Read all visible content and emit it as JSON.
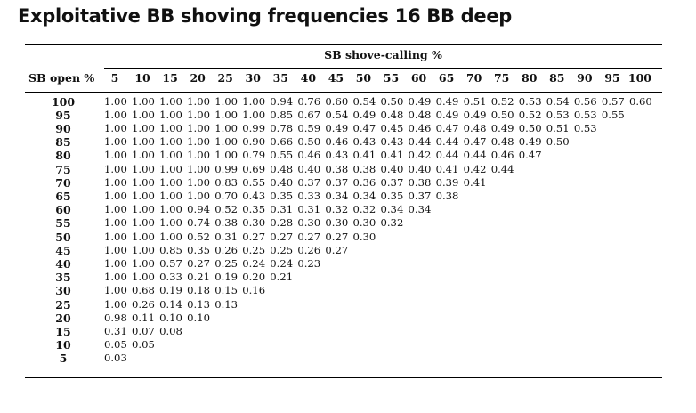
{
  "title": "Exploitative BB shoving frequencies 16 BB deep",
  "table": {
    "group_header": "SB shove-calling %",
    "row_header": "SB open %",
    "columns": [
      "5",
      "10",
      "15",
      "20",
      "25",
      "30",
      "35",
      "40",
      "45",
      "50",
      "55",
      "60",
      "65",
      "70",
      "75",
      "80",
      "85",
      "90",
      "95",
      "100"
    ],
    "rows": [
      {
        "label": "100",
        "values": [
          "1.00",
          "1.00",
          "1.00",
          "1.00",
          "1.00",
          "1.00",
          "0.94",
          "0.76",
          "0.60",
          "0.54",
          "0.50",
          "0.49",
          "0.49",
          "0.51",
          "0.52",
          "0.53",
          "0.54",
          "0.56",
          "0.57",
          "0.60"
        ]
      },
      {
        "label": "95",
        "values": [
          "1.00",
          "1.00",
          "1.00",
          "1.00",
          "1.00",
          "1.00",
          "0.85",
          "0.67",
          "0.54",
          "0.49",
          "0.48",
          "0.48",
          "0.49",
          "0.49",
          "0.50",
          "0.52",
          "0.53",
          "0.53",
          "0.55"
        ]
      },
      {
        "label": "90",
        "values": [
          "1.00",
          "1.00",
          "1.00",
          "1.00",
          "1.00",
          "0.99",
          "0.78",
          "0.59",
          "0.49",
          "0.47",
          "0.45",
          "0.46",
          "0.47",
          "0.48",
          "0.49",
          "0.50",
          "0.51",
          "0.53"
        ]
      },
      {
        "label": "85",
        "values": [
          "1.00",
          "1.00",
          "1.00",
          "1.00",
          "1.00",
          "0.90",
          "0.66",
          "0.50",
          "0.46",
          "0.43",
          "0.43",
          "0.44",
          "0.44",
          "0.47",
          "0.48",
          "0.49",
          "0.50"
        ]
      },
      {
        "label": "80",
        "values": [
          "1.00",
          "1.00",
          "1.00",
          "1.00",
          "1.00",
          "0.79",
          "0.55",
          "0.46",
          "0.43",
          "0.41",
          "0.41",
          "0.42",
          "0.44",
          "0.44",
          "0.46",
          "0.47"
        ]
      },
      {
        "label": "75",
        "values": [
          "1.00",
          "1.00",
          "1.00",
          "1.00",
          "0.99",
          "0.69",
          "0.48",
          "0.40",
          "0.38",
          "0.38",
          "0.40",
          "0.40",
          "0.41",
          "0.42",
          "0.44"
        ]
      },
      {
        "label": "70",
        "values": [
          "1.00",
          "1.00",
          "1.00",
          "1.00",
          "0.83",
          "0.55",
          "0.40",
          "0.37",
          "0.37",
          "0.36",
          "0.37",
          "0.38",
          "0.39",
          "0.41"
        ]
      },
      {
        "label": "65",
        "values": [
          "1.00",
          "1.00",
          "1.00",
          "1.00",
          "0.70",
          "0.43",
          "0.35",
          "0.33",
          "0.34",
          "0.34",
          "0.35",
          "0.37",
          "0.38"
        ]
      },
      {
        "label": "60",
        "values": [
          "1.00",
          "1.00",
          "1.00",
          "0.94",
          "0.52",
          "0.35",
          "0.31",
          "0.31",
          "0.32",
          "0.32",
          "0.34",
          "0.34"
        ]
      },
      {
        "label": "55",
        "values": [
          "1.00",
          "1.00",
          "1.00",
          "0.74",
          "0.38",
          "0.30",
          "0.28",
          "0.30",
          "0.30",
          "0.30",
          "0.32"
        ]
      },
      {
        "label": "50",
        "values": [
          "1.00",
          "1.00",
          "1.00",
          "0.52",
          "0.31",
          "0.27",
          "0.27",
          "0.27",
          "0.27",
          "0.30"
        ]
      },
      {
        "label": "45",
        "values": [
          "1.00",
          "1.00",
          "0.85",
          "0.35",
          "0.26",
          "0.25",
          "0.25",
          "0.26",
          "0.27"
        ]
      },
      {
        "label": "40",
        "values": [
          "1.00",
          "1.00",
          "0.57",
          "0.27",
          "0.25",
          "0.24",
          "0.24",
          "0.23"
        ]
      },
      {
        "label": "35",
        "values": [
          "1.00",
          "1.00",
          "0.33",
          "0.21",
          "0.19",
          "0.20",
          "0.21"
        ]
      },
      {
        "label": "30",
        "values": [
          "1.00",
          "0.68",
          "0.19",
          "0.18",
          "0.15",
          "0.16"
        ]
      },
      {
        "label": "25",
        "values": [
          "1.00",
          "0.26",
          "0.14",
          "0.13",
          "0.13"
        ]
      },
      {
        "label": "20",
        "values": [
          "0.98",
          "0.11",
          "0.10",
          "0.10"
        ]
      },
      {
        "label": "15",
        "values": [
          "0.31",
          "0.07",
          "0.08"
        ]
      },
      {
        "label": "10",
        "values": [
          "0.05",
          "0.05"
        ]
      },
      {
        "label": "5",
        "values": [
          "0.03"
        ]
      }
    ]
  }
}
